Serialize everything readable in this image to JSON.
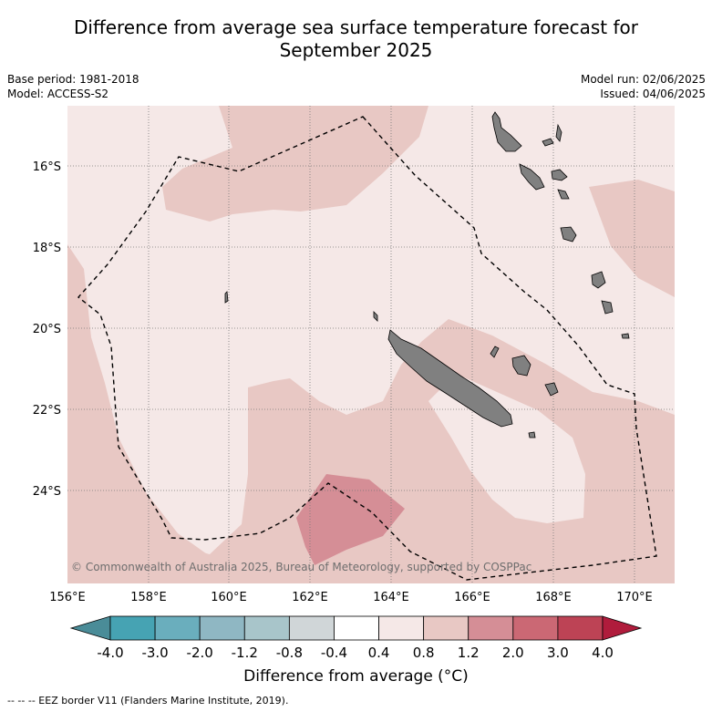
{
  "title_line1": "Difference from average sea surface temperature forecast for",
  "title_line2": "September 2025",
  "meta_left": [
    "Base period: 1981-2018",
    "Model: ACCESS-S2"
  ],
  "meta_right": [
    "Model run: 02/06/2025",
    "Issued: 04/06/2025"
  ],
  "map": {
    "lat_labels": [
      "16°S",
      "18°S",
      "20°S",
      "22°S",
      "24°S"
    ],
    "lon_labels": [
      "156°E",
      "158°E",
      "160°E",
      "162°E",
      "164°E",
      "166°E",
      "168°E",
      "170°E"
    ],
    "copyright": "© Commonwealth of Australia 2025, Bureau of Meteorology, supported by COSPPac",
    "colors": {
      "bin_0_4_0_8": "#f5e8e7",
      "bin_0_8_1_2": "#e8c8c4",
      "bin_1_2_2_0": "#d58e96",
      "land": "#808080"
    }
  },
  "colorbar": {
    "ticks": [
      "-4.0",
      "-3.0",
      "-2.0",
      "-1.2",
      "-0.8",
      "-0.4",
      "0.4",
      "0.8",
      "1.2",
      "2.0",
      "3.0",
      "4.0"
    ],
    "colors": [
      "#4a8c98",
      "#46a3b3",
      "#6aaebd",
      "#8fb7c3",
      "#a8c5ca",
      "#d0d6d8",
      "#ffffff",
      "#f5e8e7",
      "#e8c8c4",
      "#d58e96",
      "#cb6874",
      "#bd4355",
      "#b01c3c"
    ],
    "label": "Difference from average (°C)"
  },
  "footnote": "--  --  -- EEZ border V11 (Flanders Marine Institute, 2019)."
}
